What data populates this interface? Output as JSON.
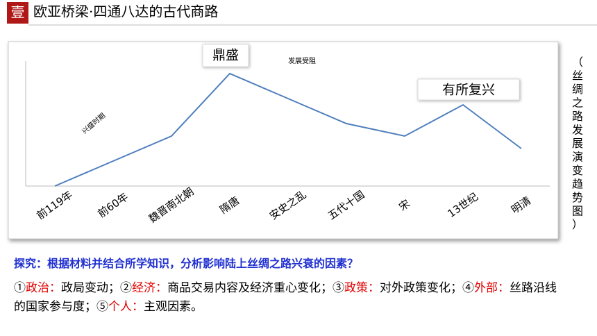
{
  "header": {
    "badge": "壹",
    "title": "欧亚桥梁·四通八达的古代商路"
  },
  "chart_data": {
    "type": "line",
    "categories": [
      "前119年",
      "前60年",
      "魏晋南北朝",
      "隋唐",
      "安史之乱",
      "五代十国",
      "宋",
      "13世纪",
      "明清"
    ],
    "series": [
      {
        "color": "#4f7fbd",
        "values": [
          0,
          2,
          4,
          9,
          7,
          5,
          4,
          6.5,
          3
        ]
      }
    ],
    "ylim": [
      0,
      10
    ],
    "annotations": [
      "鼎盛",
      "发展受阻",
      "有所复兴",
      "兴盛时期"
    ],
    "side_title": "（丝绸之路发展演变趋势图）"
  },
  "question": "探究：根据材料并结合所学知识，分析影响陆上丝绸之路兴衰的因素？",
  "answer": [
    {
      "text": "①",
      "color": "#000000"
    },
    {
      "text": "政治：",
      "color": "#e00000"
    },
    {
      "text": "政局变动；②",
      "color": "#000000"
    },
    {
      "text": "经济：",
      "color": "#e00000"
    },
    {
      "text": "商品交易内容及经济重心变化；③",
      "color": "#000000"
    },
    {
      "text": "政策：",
      "color": "#e00000"
    },
    {
      "text": "对外政策变化；④",
      "color": "#000000"
    },
    {
      "text": "外部：",
      "color": "#e00000"
    },
    {
      "text": "丝路沿线的国家参与度；⑤",
      "color": "#000000"
    },
    {
      "text": "个人：",
      "color": "#e00000"
    },
    {
      "text": "主观因素。",
      "color": "#000000"
    }
  ]
}
